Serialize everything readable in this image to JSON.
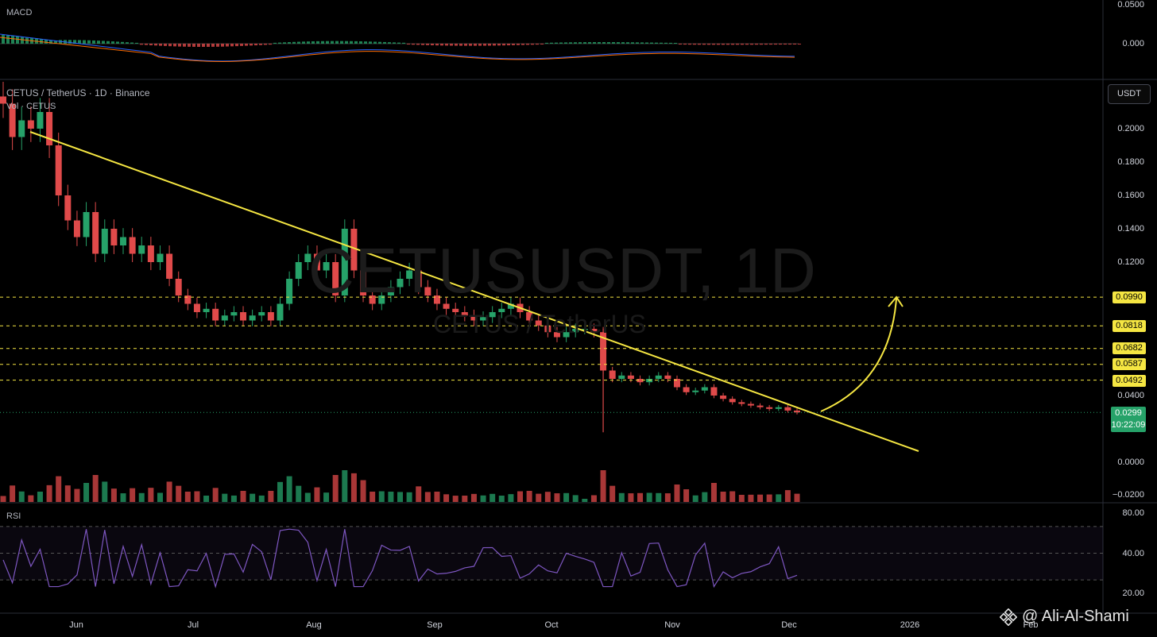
{
  "macd": {
    "label": "MACD",
    "ticks": [
      "0.0500",
      "0.000"
    ]
  },
  "main": {
    "symbol_line": "CETUS / TetherUS · 1D · Binance",
    "vol_line": "Vol · CETUS",
    "watermark": "CETUSUSDT, 1D",
    "watermark_sub": "CETUS / TetherUS",
    "unit": "USDT",
    "axis_ticks": [
      "0.2000",
      "0.1800",
      "0.1600",
      "0.1400",
      "0.1200",
      "0.0400",
      "0.0000",
      "−0.0200"
    ],
    "levels": [
      "0.0990",
      "0.0818",
      "0.0682",
      "0.0587",
      "0.0492"
    ],
    "current_price": "0.0299",
    "countdown": "10:22:09"
  },
  "rsi": {
    "label": "RSI",
    "ticks": [
      "80.00",
      "40.00",
      "20.00"
    ]
  },
  "time_axis": [
    "Jun",
    "Jul",
    "Aug",
    "Sep",
    "Oct",
    "Nov",
    "Dec",
    "2026",
    "Feb"
  ],
  "credit": "@ Ali-Al-Shami",
  "colors": {
    "up": "#26a269",
    "down": "#e04a4a",
    "trendline": "#f5e642",
    "rsi_line": "#7e57c2",
    "macd_line": "#2962ff",
    "signal_line": "#ff6d00"
  },
  "chart_data": {
    "type": "candlestick",
    "series": [
      {
        "name": "CETUS / TetherUS",
        "close_approx": [
          0.215,
          0.195,
          0.205,
          0.2,
          0.21,
          0.19,
          0.16,
          0.145,
          0.135,
          0.15,
          0.125,
          0.14,
          0.13,
          0.135,
          0.125,
          0.13,
          0.12,
          0.125,
          0.11,
          0.1,
          0.095,
          0.09,
          0.092,
          0.085,
          0.088,
          0.09,
          0.085,
          0.088,
          0.09,
          0.085,
          0.095,
          0.11,
          0.12,
          0.125,
          0.115,
          0.12,
          0.1,
          0.14,
          0.115,
          0.1,
          0.095,
          0.1,
          0.105,
          0.11,
          0.115,
          0.105,
          0.1,
          0.095,
          0.092,
          0.09,
          0.088,
          0.085,
          0.087,
          0.09,
          0.092,
          0.095,
          0.09,
          0.085,
          0.082,
          0.078,
          0.075,
          0.078,
          0.08,
          0.08,
          0.078,
          0.055,
          0.05,
          0.052,
          0.05,
          0.048,
          0.05,
          0.052,
          0.05,
          0.045,
          0.042,
          0.043,
          0.045,
          0.04,
          0.038,
          0.036,
          0.035,
          0.034,
          0.033,
          0.032,
          0.033,
          0.031,
          0.0299
        ]
      }
    ],
    "levels": [
      0.099,
      0.0818,
      0.0682,
      0.0587,
      0.0492
    ],
    "current_price": 0.0299,
    "ylim": [
      -0.02,
      0.22
    ]
  }
}
